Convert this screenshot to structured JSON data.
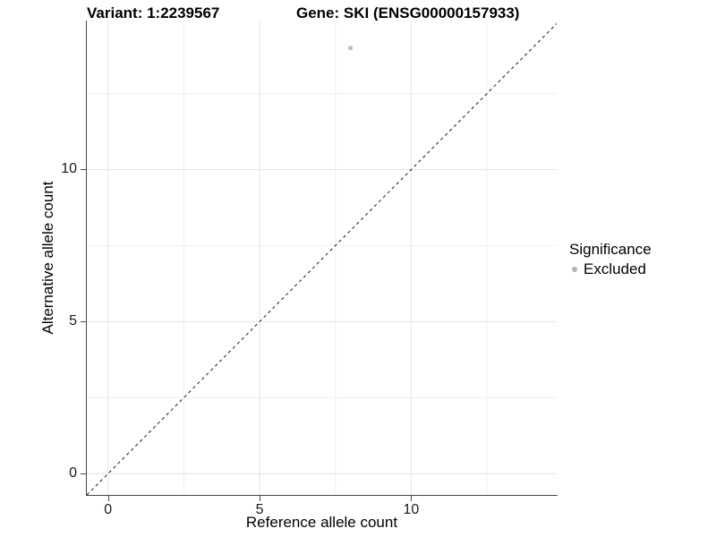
{
  "header": {
    "variant_title": "Variant: 1:2239567",
    "gene_title": "Gene: SKI (ENSG00000157933)"
  },
  "chart_data": {
    "type": "scatter",
    "xlabel": "Reference allele count",
    "ylabel": "Alternative allele count",
    "xlim": [
      -0.7,
      14.8
    ],
    "ylim": [
      -0.7,
      14.9
    ],
    "x_major_ticks": [
      0,
      5,
      10
    ],
    "y_major_ticks": [
      0,
      5,
      10
    ],
    "x_minor_ticks": [
      2.5,
      7.5,
      12.5
    ],
    "y_minor_ticks": [
      2.5,
      7.5,
      12.5
    ],
    "grid": true,
    "series": [
      {
        "name": "Excluded",
        "color": "#bdbdbd",
        "point_radius": 2.6,
        "points": [
          {
            "x": 8,
            "y": 14
          }
        ]
      }
    ],
    "reference_line": {
      "type": "identity",
      "slope": 1,
      "intercept": 0,
      "style": "dashed",
      "dash": [
        3.5,
        3.5
      ],
      "color": "#1a1a1a"
    },
    "legend": {
      "title": "Significance",
      "position": "right",
      "items": [
        {
          "label": "Excluded",
          "color": "#b3b3b3"
        }
      ]
    }
  },
  "colors": {
    "background": "#ffffff",
    "grid_major": "#e4e4e4",
    "grid_minor": "#efefef",
    "axis_line": "#474747",
    "tick_mark": "#474747",
    "tick_label": "#1a1a1a",
    "title_text": "#000000"
  }
}
